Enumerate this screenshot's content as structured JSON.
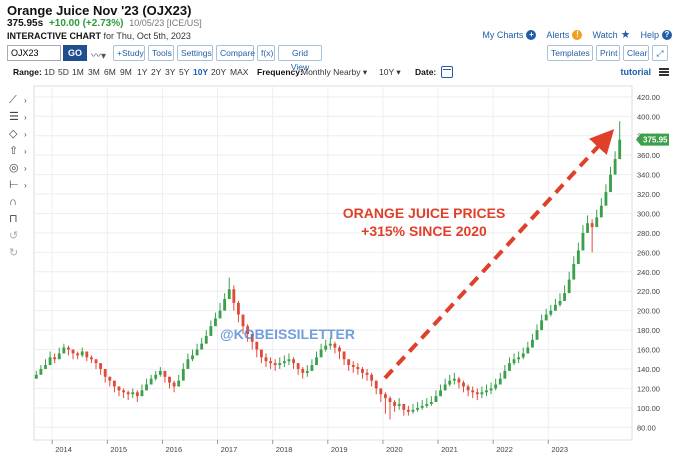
{
  "header": {
    "title": "Orange Juice Nov '23 (OJX23)",
    "last": "375.95s",
    "change": "+10.00 (+2.73%)",
    "date": "10/05/23 [ICE/US]",
    "chart_label": "INTERACTIVE CHART",
    "chart_for": "for Thu, Oct 5th, 2023"
  },
  "toplinks": {
    "my_charts": "My Charts",
    "alerts": "Alerts",
    "watch": "Watch",
    "help": "Help"
  },
  "toolbar": {
    "symbol_value": "OJX23",
    "go_label": "GO",
    "study_label": "+Study",
    "tools_label": "Tools",
    "settings_label": "Settings",
    "compare_label": "Compare",
    "fx_label": "f(x)",
    "gridview_label": "Grid View",
    "templates_label": "Templates",
    "print_label": "Print",
    "clear_label": "Clear"
  },
  "rangebar": {
    "range_label": "Range:",
    "options": [
      "1D",
      "5D",
      "1M",
      "3M",
      "6M",
      "9M",
      "1Y",
      "2Y",
      "3Y",
      "5Y",
      "10Y",
      "20Y",
      "MAX"
    ],
    "selected": "10Y",
    "frequency_label": "Frequency:",
    "frequency_value": "Monthly Nearby",
    "period_value": "10Y",
    "date_label": "Date:",
    "tutorial_label": "tutorial"
  },
  "side_tools": [
    "line-tool-icon",
    "fib-tool-icon",
    "shape-tool-icon",
    "arrow-tool-icon",
    "marker-tool-icon",
    "measure-tool-icon",
    "magnet-icon",
    "lock-icon",
    "undo-icon",
    "redo-icon"
  ],
  "colors": {
    "up": "#3aa04a",
    "down": "#e04a3a",
    "annotation": "#e0402a",
    "watermark": "#4d86d6",
    "accent": "#1f5fa8"
  },
  "annotation": {
    "line1": "ORANGE JUICE PRICES",
    "line2": "+315% SINCE 2020"
  },
  "watermark": "@KOBEISSILETTER",
  "chart_data": {
    "type": "candlestick",
    "x_ticks": [
      "2014",
      "2015",
      "2016",
      "2017",
      "2018",
      "2019",
      "2020",
      "2021",
      "2022",
      "2023"
    ],
    "y_ticks": [
      "80.00",
      "100.00",
      "120.00",
      "140.00",
      "160.00",
      "180.00",
      "200.00",
      "220.00",
      "240.00",
      "260.00",
      "280.00",
      "300.00",
      "320.00",
      "340.00",
      "360.00",
      "380.00",
      "400.00",
      "420.00"
    ],
    "ylim": [
      70,
      425
    ],
    "last_price_label": "375.95",
    "last_price": 375.95,
    "start_year": 2013.67,
    "step_months": 1,
    "closes": [
      134,
      140,
      144,
      152,
      150,
      156,
      162,
      160,
      156,
      154,
      158,
      152,
      150,
      146,
      140,
      132,
      128,
      122,
      118,
      116,
      114,
      116,
      112,
      118,
      124,
      130,
      134,
      138,
      132,
      126,
      122,
      128,
      140,
      150,
      154,
      160,
      166,
      174,
      184,
      192,
      200,
      212,
      222,
      208,
      196,
      184,
      176,
      168,
      160,
      152,
      148,
      146,
      144,
      146,
      148,
      150,
      146,
      140,
      136,
      138,
      144,
      152,
      160,
      164,
      166,
      162,
      158,
      150,
      144,
      142,
      140,
      136,
      134,
      128,
      120,
      114,
      110,
      106,
      102,
      104,
      98,
      96,
      98,
      100,
      102,
      104,
      106,
      112,
      118,
      124,
      128,
      130,
      126,
      122,
      118,
      116,
      114,
      116,
      118,
      120,
      124,
      130,
      138,
      146,
      150,
      152,
      156,
      162,
      170,
      180,
      190,
      196,
      200,
      206,
      210,
      218,
      232,
      248,
      262,
      280,
      290,
      286,
      296,
      308,
      322,
      340,
      356,
      375.95
    ],
    "highs": [
      138,
      144,
      150,
      158,
      156,
      162,
      166,
      164,
      160,
      158,
      162,
      156,
      154,
      150,
      146,
      138,
      132,
      128,
      122,
      120,
      118,
      120,
      118,
      124,
      130,
      134,
      138,
      142,
      136,
      132,
      128,
      134,
      146,
      156,
      160,
      166,
      172,
      180,
      190,
      198,
      208,
      218,
      234,
      226,
      210,
      196,
      186,
      176,
      168,
      160,
      156,
      152,
      150,
      152,
      154,
      156,
      152,
      146,
      142,
      144,
      150,
      158,
      166,
      170,
      172,
      168,
      164,
      158,
      150,
      148,
      146,
      142,
      140,
      136,
      128,
      120,
      116,
      112,
      108,
      110,
      104,
      102,
      104,
      106,
      108,
      110,
      112,
      118,
      124,
      130,
      134,
      136,
      132,
      128,
      124,
      122,
      120,
      122,
      124,
      126,
      130,
      136,
      144,
      152,
      156,
      158,
      162,
      168,
      176,
      186,
      196,
      202,
      206,
      212,
      218,
      226,
      240,
      256,
      270,
      288,
      298,
      294,
      304,
      316,
      330,
      348,
      364,
      395
    ],
    "lows": [
      130,
      136,
      140,
      148,
      146,
      152,
      156,
      154,
      150,
      150,
      152,
      148,
      146,
      140,
      134,
      126,
      122,
      116,
      112,
      110,
      108,
      110,
      106,
      112,
      118,
      124,
      128,
      132,
      126,
      120,
      116,
      122,
      134,
      144,
      148,
      154,
      160,
      168,
      178,
      186,
      194,
      204,
      214,
      200,
      188,
      176,
      168,
      160,
      152,
      146,
      142,
      140,
      138,
      140,
      142,
      144,
      140,
      134,
      130,
      132,
      138,
      146,
      154,
      158,
      160,
      156,
      150,
      144,
      138,
      136,
      134,
      130,
      128,
      122,
      114,
      106,
      94,
      88,
      96,
      98,
      92,
      92,
      94,
      96,
      98,
      100,
      102,
      106,
      112,
      118,
      122,
      124,
      120,
      116,
      112,
      110,
      108,
      110,
      112,
      114,
      118,
      124,
      132,
      140,
      144,
      146,
      150,
      156,
      164,
      174,
      184,
      190,
      194,
      200,
      204,
      210,
      224,
      240,
      254,
      270,
      280,
      260,
      286,
      298,
      312,
      330,
      346,
      356
    ]
  }
}
